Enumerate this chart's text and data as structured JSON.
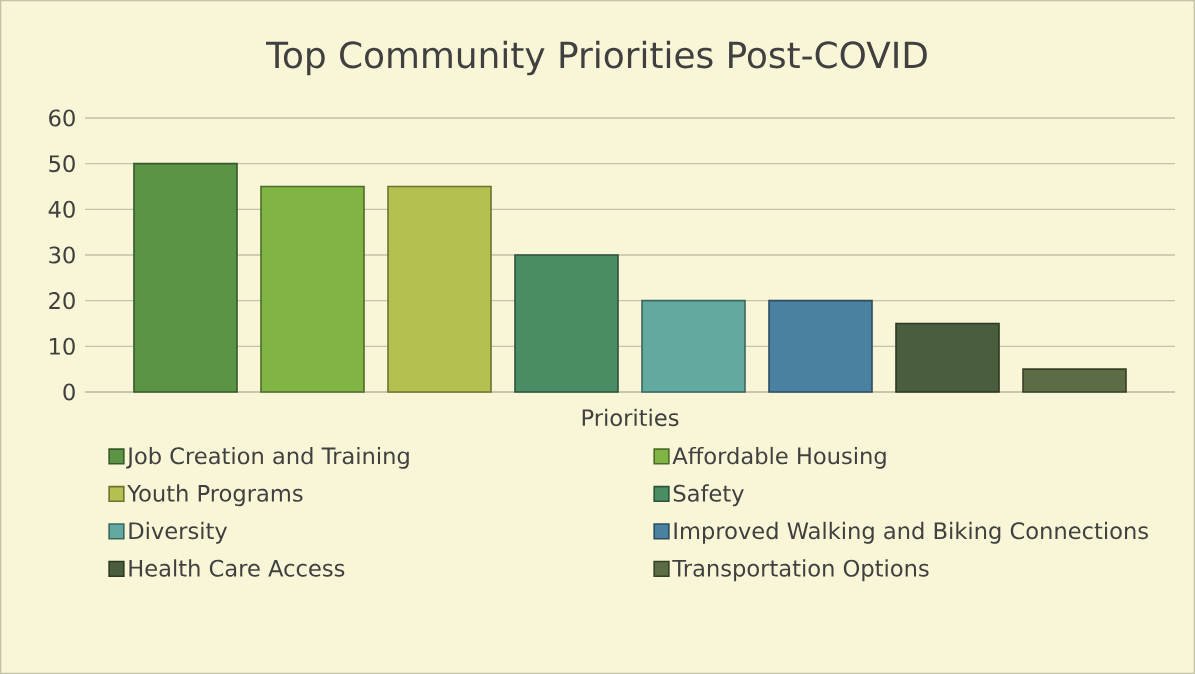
{
  "chart_data": {
    "type": "bar",
    "title": "Top Community Priorities Post-COVID",
    "categories": [
      "Priorities"
    ],
    "series": [
      {
        "name": "Job Creation and Training",
        "color": "#5a9444",
        "values": [
          50
        ]
      },
      {
        "name": "Affordable Housing",
        "color": "#80b444",
        "values": [
          45
        ]
      },
      {
        "name": "Youth Programs",
        "color": "#b4c050",
        "values": [
          45
        ]
      },
      {
        "name": "Safety",
        "color": "#4a8c64",
        "values": [
          30
        ]
      },
      {
        "name": "Diversity",
        "color": "#62aaa0",
        "values": [
          20
        ]
      },
      {
        "name": "Improved Walking and Biking Connections",
        "color": "#4a80a0",
        "values": [
          20
        ]
      },
      {
        "name": "Health Care Access",
        "color": "#4a5e3e",
        "values": [
          15
        ]
      },
      {
        "name": "Transportation Options",
        "color": "#5c6c44",
        "values": [
          5
        ]
      }
    ],
    "ylim": [
      0,
      60
    ],
    "yticks": [
      0,
      10,
      20,
      30,
      40,
      50,
      60
    ],
    "grid": "y",
    "legend": "bottom"
  }
}
